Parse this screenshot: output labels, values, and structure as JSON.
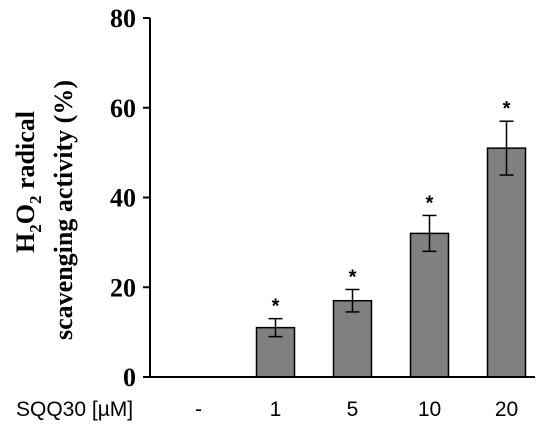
{
  "chart_data": {
    "type": "bar",
    "categories": [
      "-",
      "1",
      "5",
      "10",
      "20"
    ],
    "values": [
      0,
      11,
      17,
      32,
      51
    ],
    "errors": [
      0,
      2,
      2.5,
      4,
      6
    ],
    "significance": [
      "",
      "*",
      "*",
      "*",
      "*"
    ],
    "xlabel": "SQQ30 [µM]",
    "ylabel": {
      "line1_prefix": "H",
      "line1_sub1": "2",
      "line1_mid": "O",
      "line1_sub2": "2",
      "line1_suffix": " radical",
      "line2": "scavenging activity (%)"
    },
    "ylim": [
      0,
      80
    ],
    "yticks": [
      0,
      20,
      40,
      60,
      80
    ],
    "bar_color": "#808080",
    "grid": false
  }
}
